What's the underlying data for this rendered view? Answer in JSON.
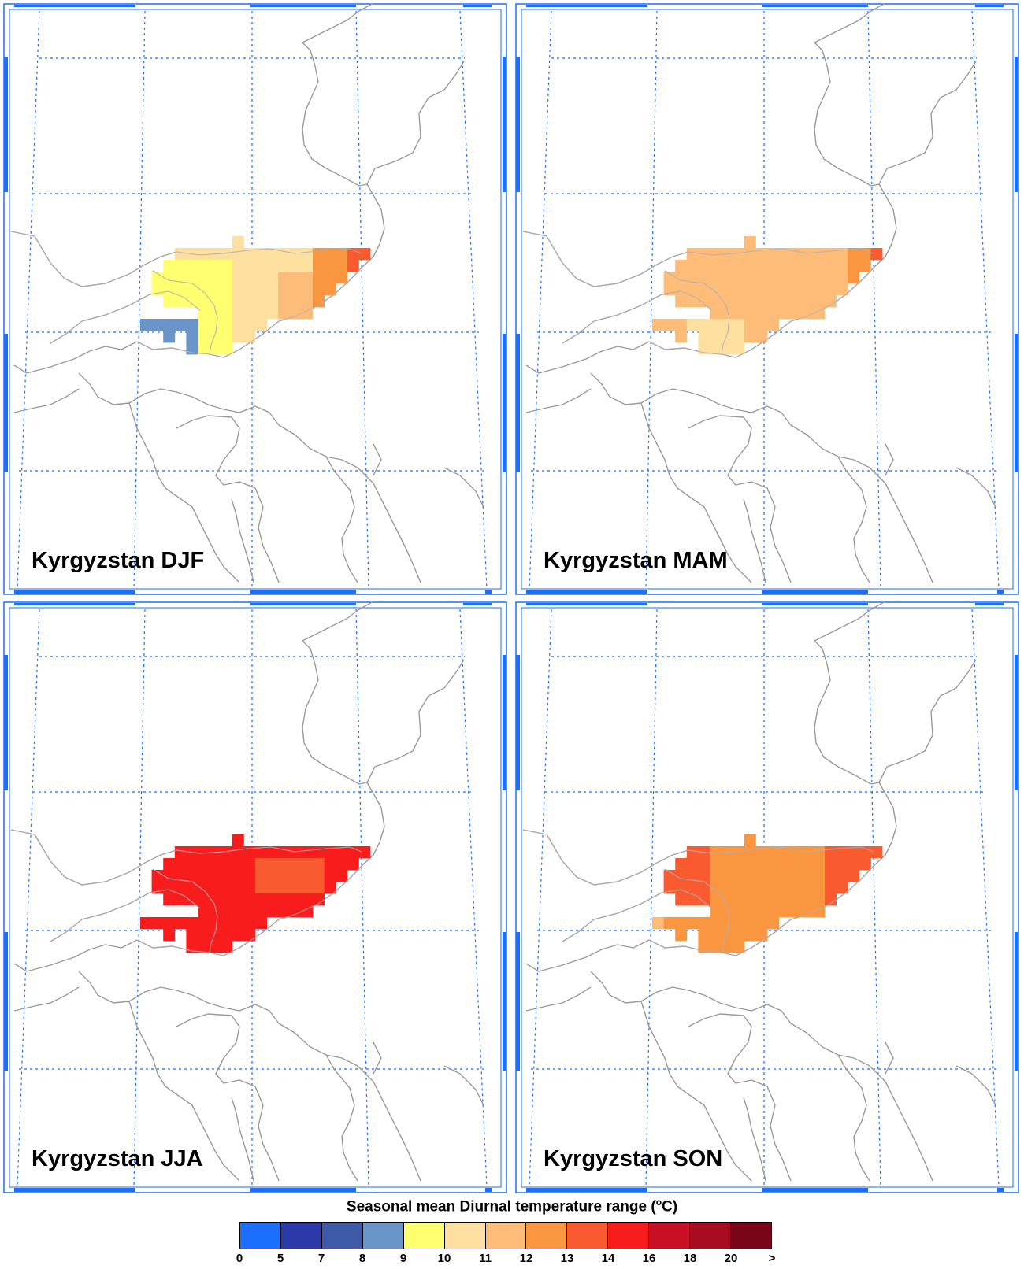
{
  "panels": [
    {
      "id": "djf",
      "title": "Kyrgyzstan DJF"
    },
    {
      "id": "mam",
      "title": "Kyrgyzstan MAM"
    },
    {
      "id": "jja",
      "title": "Kyrgyzstan JJA"
    },
    {
      "id": "son",
      "title": "Kyrgyzstan SON"
    }
  ],
  "colorbar": {
    "title_main": "Seasonal mean Diurnal temperature range (",
    "title_sup": "o",
    "title_end": "C)",
    "colors": [
      "#1a6fff",
      "#2a3aa8",
      "#3d5aa8",
      "#6a95c8",
      "#ffff70",
      "#fde0a0",
      "#fdbd78",
      "#fb9640",
      "#fa5a30",
      "#f81c1c",
      "#c81024",
      "#a80c20",
      "#7a0418"
    ],
    "labels": [
      "0",
      "5",
      "7",
      "8",
      "9",
      "10",
      "11",
      "12",
      "13",
      "14",
      "16",
      "18",
      "20",
      ">"
    ]
  }
}
